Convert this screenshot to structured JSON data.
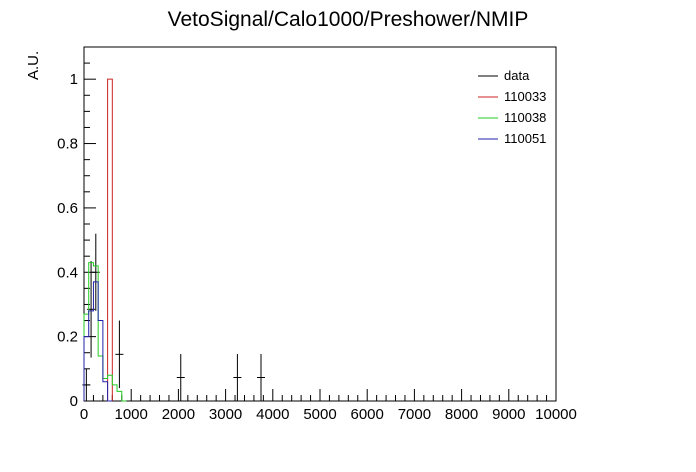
{
  "chart_data": {
    "type": "histogram",
    "title": "VetoSignal/Calo1000/Preshower/NMIP",
    "xlabel": "",
    "ylabel": "A.U.",
    "xlim": [
      0,
      10000
    ],
    "ylim": [
      0,
      1.1
    ],
    "x_tick_labels": [
      "0",
      "1000",
      "2000",
      "3000",
      "4000",
      "5000",
      "6000",
      "7000",
      "8000",
      "9000",
      "10000"
    ],
    "y_tick_labels": [
      "0",
      "0.2",
      "0.4",
      "0.6",
      "0.8",
      "1"
    ],
    "legend_position": "top-right",
    "series": [
      {
        "name": "data",
        "color": "#000000",
        "style": "points",
        "points": [
          {
            "x": 50,
            "y": 0.05,
            "err": 0.05
          },
          {
            "x": 150,
            "y": 0.285,
            "err": 0.15
          },
          {
            "x": 250,
            "y": 0.4,
            "err": 0.12
          },
          {
            "x": 750,
            "y": 0.145,
            "err": 0.105
          },
          {
            "x": 2050,
            "y": 0.073,
            "err": 0.073
          },
          {
            "x": 3250,
            "y": 0.073,
            "err": 0.073
          },
          {
            "x": 3750,
            "y": 0.073,
            "err": 0.073
          }
        ]
      },
      {
        "name": "110033",
        "color": "#cc2222",
        "style": "step",
        "bins": [
          {
            "x0": 500,
            "x1": 600,
            "y": 1.0
          }
        ]
      },
      {
        "name": "110038",
        "color": "#22cc22",
        "style": "step",
        "bins": [
          {
            "x0": 0,
            "x1": 100,
            "y": 0.27
          },
          {
            "x0": 100,
            "x1": 200,
            "y": 0.43
          },
          {
            "x0": 200,
            "x1": 300,
            "y": 0.42
          },
          {
            "x0": 300,
            "x1": 400,
            "y": 0.14
          },
          {
            "x0": 400,
            "x1": 500,
            "y": 0.07
          },
          {
            "x0": 500,
            "x1": 600,
            "y": 0.08
          },
          {
            "x0": 600,
            "x1": 700,
            "y": 0.05
          },
          {
            "x0": 700,
            "x1": 800,
            "y": 0.03
          },
          {
            "x0": 800,
            "x1": 900,
            "y": 0.0
          }
        ]
      },
      {
        "name": "110051",
        "color": "#2222aa",
        "style": "step",
        "bins": [
          {
            "x0": 0,
            "x1": 100,
            "y": 0.2
          },
          {
            "x0": 100,
            "x1": 200,
            "y": 0.28
          },
          {
            "x0": 200,
            "x1": 300,
            "y": 0.37
          },
          {
            "x0": 300,
            "x1": 400,
            "y": 0.25
          },
          {
            "x0": 400,
            "x1": 500,
            "y": 0.06
          },
          {
            "x0": 500,
            "x1": 600,
            "y": 0.0
          }
        ]
      }
    ]
  }
}
